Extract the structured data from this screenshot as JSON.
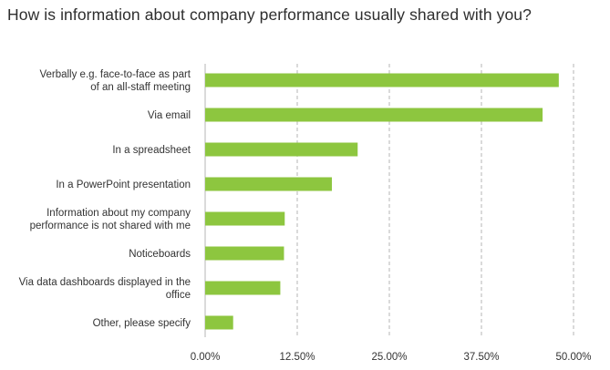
{
  "chart_data": {
    "type": "bar",
    "orientation": "horizontal",
    "title": "How is information about company performance usually shared with you?",
    "categories": [
      [
        "Verbally e.g. face-to-face as part",
        "of an all-staff meeting"
      ],
      [
        "Via email"
      ],
      [
        "In a spreadsheet"
      ],
      [
        "In a PowerPoint presentation"
      ],
      [
        "Information about my company",
        "performance is not shared with me"
      ],
      [
        "Noticeboards"
      ],
      [
        "Via data dashboards displayed in the",
        "office"
      ],
      [
        "Other, please specify"
      ]
    ],
    "values": [
      48.0,
      45.8,
      20.7,
      17.2,
      10.8,
      10.7,
      10.2,
      3.8
    ],
    "xlim": [
      0,
      50
    ],
    "xticks": [
      0,
      12.5,
      25,
      37.5,
      50
    ],
    "xtick_labels": [
      "0.00%",
      "12.50%",
      "25.00%",
      "37.50%",
      "50.00%"
    ],
    "grid": "vertical-dashed",
    "bar_color": "#8dc63f",
    "xlabel": "",
    "ylabel": ""
  }
}
